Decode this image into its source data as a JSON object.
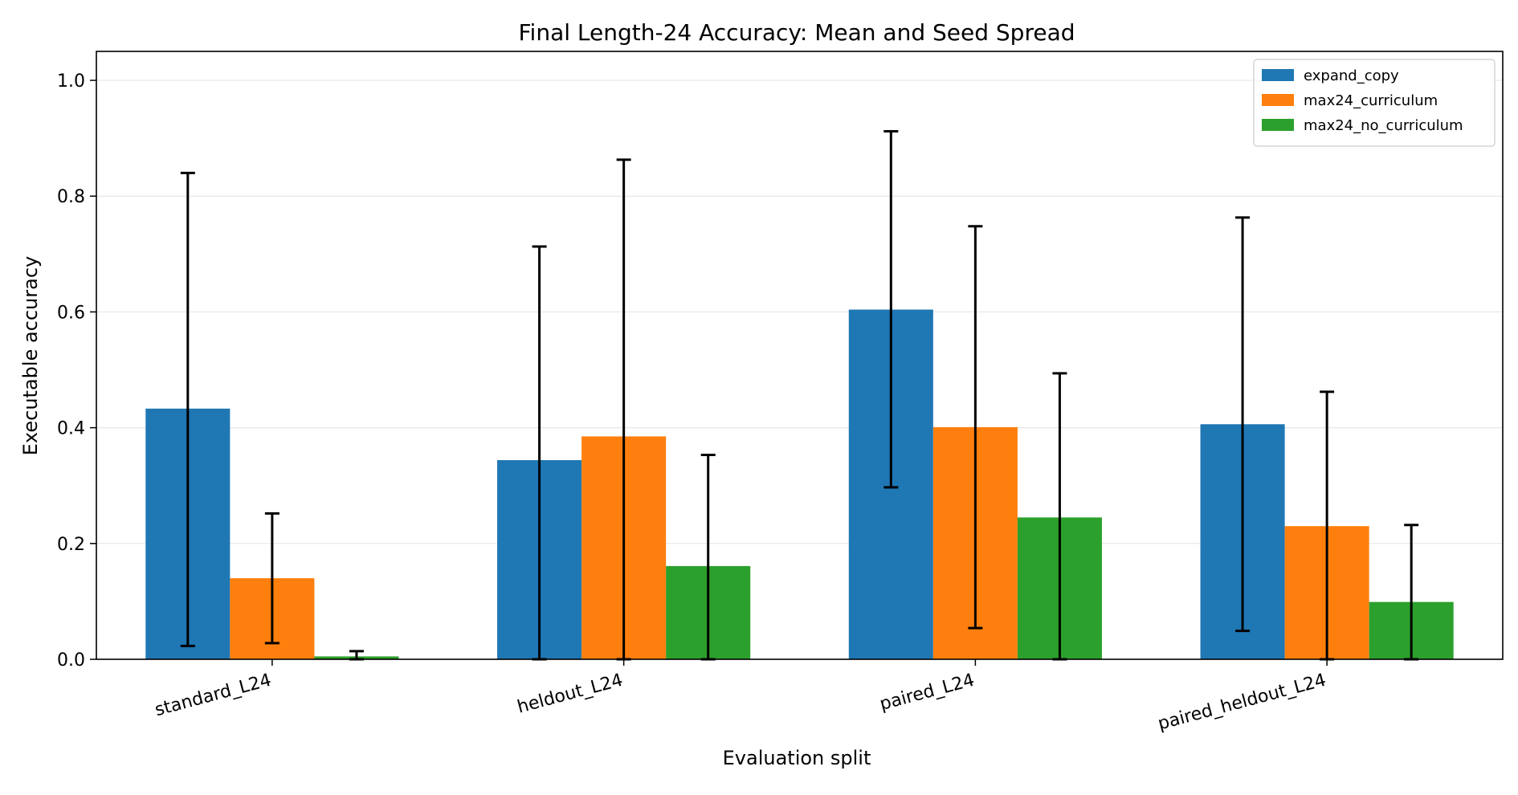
{
  "chart_data": {
    "type": "bar",
    "title": "Final Length-24 Accuracy: Mean and Seed Spread",
    "xlabel": "Evaluation split",
    "ylabel": "Executable accuracy",
    "categories": [
      "standard_L24",
      "heldout_L24",
      "paired_L24",
      "paired_heldout_L24"
    ],
    "ylim": [
      0,
      1.05
    ],
    "yticks": [
      0.0,
      0.2,
      0.4,
      0.6,
      0.8,
      1.0
    ],
    "ytick_labels": [
      "0.0",
      "0.2",
      "0.4",
      "0.6",
      "0.8",
      "1.0"
    ],
    "grid": "horizontal",
    "legend_position": "top-right",
    "series": [
      {
        "name": "expand_copy",
        "color": "#1f77b4",
        "values": [
          0.433,
          0.344,
          0.604,
          0.406
        ],
        "err_low": [
          0.023,
          0.0,
          0.297,
          0.049
        ],
        "err_high": [
          0.84,
          0.713,
          0.912,
          0.763
        ]
      },
      {
        "name": "max24_curriculum",
        "color": "#ff7f0e",
        "values": [
          0.14,
          0.385,
          0.401,
          0.23
        ],
        "err_low": [
          0.028,
          0.0,
          0.054,
          0.0
        ],
        "err_high": [
          0.252,
          0.863,
          0.748,
          0.462
        ]
      },
      {
        "name": "max24_no_curriculum",
        "color": "#2ca02c",
        "values": [
          0.005,
          0.161,
          0.245,
          0.099
        ],
        "err_low": [
          0.0,
          0.0,
          0.0,
          0.0
        ],
        "err_high": [
          0.014,
          0.353,
          0.494,
          0.232
        ]
      }
    ]
  }
}
